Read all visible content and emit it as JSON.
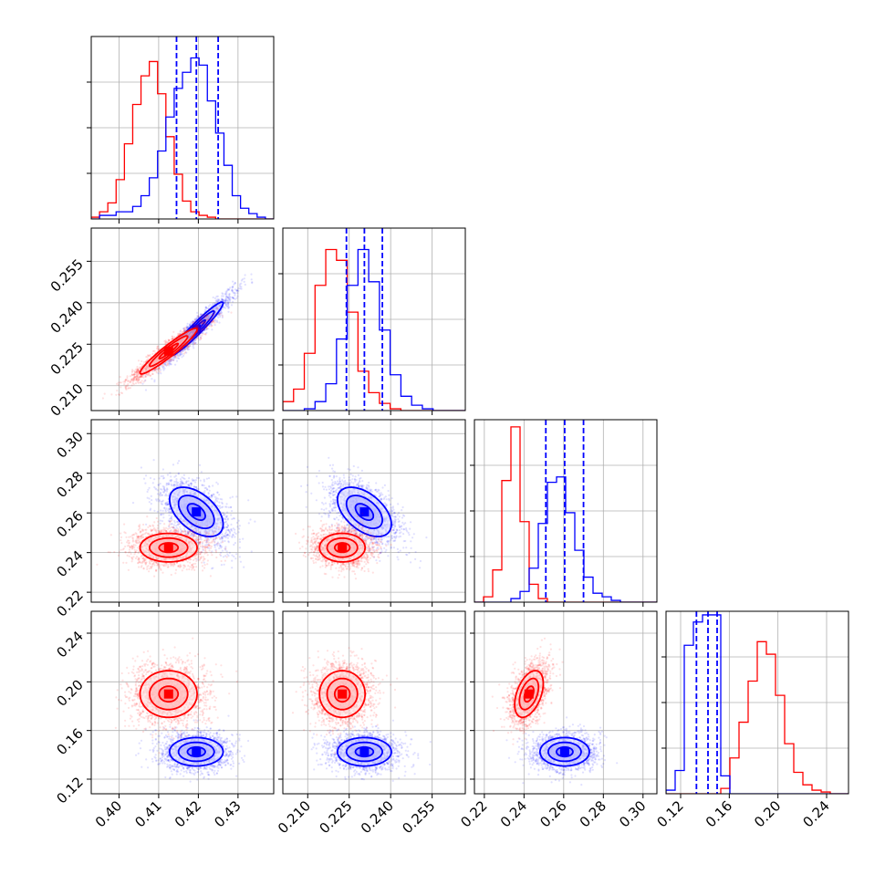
{
  "figure": {
    "label": "corner plot"
  },
  "colors": {
    "series_a": "#0000ff",
    "series_b": "#ff0000",
    "grid": "#b0b0b0",
    "axes": "#000000"
  },
  "chart_data": {
    "type": "corner",
    "grid": true,
    "variables": [
      {
        "index": 0,
        "range": [
          0.393,
          0.439
        ],
        "ticks": [
          0.4,
          0.41,
          0.42,
          0.43
        ],
        "tick_labels": [
          "0.40",
          "0.41",
          "0.42",
          "0.43"
        ]
      },
      {
        "index": 1,
        "range": [
          0.201,
          0.267
        ],
        "ticks": [
          0.21,
          0.225,
          0.24,
          0.255
        ],
        "tick_labels": [
          "0.210",
          "0.225",
          "0.240",
          "0.255"
        ]
      },
      {
        "index": 2,
        "range": [
          0.215,
          0.307
        ],
        "ticks": [
          0.22,
          0.24,
          0.26,
          0.28,
          0.3
        ],
        "tick_labels": [
          "0.22",
          "0.24",
          "0.26",
          "0.28",
          "0.30"
        ]
      },
      {
        "index": 3,
        "range": [
          0.108,
          0.258
        ],
        "ticks": [
          0.12,
          0.16,
          0.2,
          0.24
        ],
        "tick_labels": [
          "0.12",
          "0.16",
          "0.20",
          "0.24"
        ]
      }
    ],
    "series": [
      {
        "color": "#0000ff",
        "means": [
          0.4195,
          0.2305,
          0.2605,
          0.1425
        ],
        "sds": [
          0.0045,
          0.0065,
          0.0083,
          0.0078
        ],
        "correlations": {
          "0-1": 0.96,
          "0-2": -0.5,
          "1-2": -0.5,
          "0-3": 0.0,
          "1-3": 0.0,
          "2-3": 0.0
        },
        "quantiles": [
          [
            0.4145,
            0.4195,
            0.425
          ],
          [
            0.224,
            0.2305,
            0.237
          ],
          [
            0.251,
            0.2605,
            0.27
          ],
          [
            0.133,
            0.1425,
            0.15
          ]
        ]
      },
      {
        "color": "#ff0000",
        "means": [
          0.4125,
          0.2225,
          0.2425,
          0.19
        ],
        "sds": [
          0.0048,
          0.0055,
          0.0048,
          0.0128
        ],
        "correlations": {
          "0-1": 0.95,
          "0-2": 0.0,
          "1-2": 0.0,
          "0-3": 0.0,
          "1-3": 0.0,
          "2-3": 0.45
        }
      }
    ],
    "histograms": {
      "0": {
        "bins": [
          0.393,
          0.439
        ],
        "series_a": [
          0,
          2,
          2,
          4,
          4,
          7,
          13,
          23,
          38,
          57,
          73,
          82,
          90,
          86,
          66,
          48,
          30,
          13,
          6,
          3,
          1,
          0
        ],
        "series_b": [
          1,
          4,
          9,
          22,
          42,
          64,
          80,
          88,
          70,
          46,
          25,
          10,
          4,
          2,
          1,
          0,
          0,
          0,
          0,
          0,
          0,
          0
        ]
      },
      "1": {
        "bins": [
          0.201,
          0.267
        ],
        "series_a": [
          0,
          0,
          1,
          5,
          15,
          40,
          70,
          90,
          72,
          45,
          20,
          8,
          3,
          1,
          0,
          0,
          0
        ],
        "series_b": [
          5,
          12,
          32,
          70,
          90,
          84,
          55,
          22,
          10,
          4,
          1,
          0,
          0,
          0,
          0,
          0,
          0
        ]
      },
      "2": {
        "bins": [
          0.215,
          0.307
        ],
        "series_a": [
          0,
          0,
          0,
          0,
          2,
          6,
          19,
          44,
          67,
          70,
          50,
          29,
          14,
          5,
          3,
          1,
          0,
          0,
          0,
          0
        ],
        "series_b": [
          0,
          3,
          18,
          68,
          98,
          45,
          10,
          2,
          0,
          0,
          0,
          0,
          0,
          0,
          0,
          0,
          0,
          0,
          0,
          0
        ]
      },
      "3": {
        "bins": [
          0.108,
          0.258
        ],
        "series_a": [
          2,
          13,
          83,
          96,
          100,
          100,
          10,
          0,
          0,
          0,
          0,
          0,
          0,
          0,
          0,
          0,
          0,
          0,
          0,
          0
        ],
        "series_b": [
          0,
          0,
          0,
          0,
          0,
          0,
          3,
          20,
          40,
          63,
          85,
          78,
          55,
          28,
          12,
          5,
          2,
          1,
          0,
          0
        ]
      }
    },
    "contours": {
      "levels": [
        0.5,
        1.0,
        1.5
      ],
      "scatter_points_per_series": 1800,
      "seed": 7
    }
  }
}
